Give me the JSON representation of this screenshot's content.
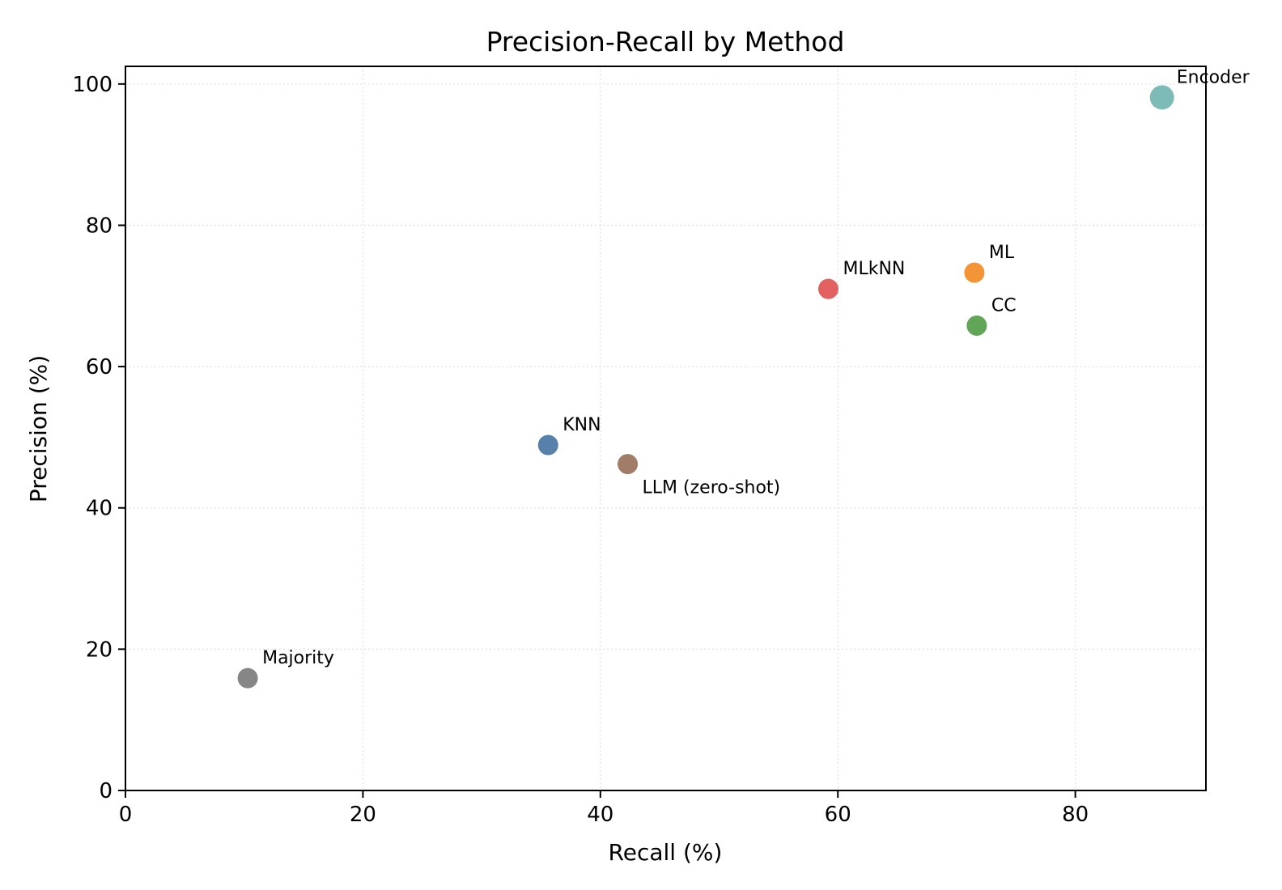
{
  "chart_data": {
    "type": "scatter",
    "title": "Precision-Recall by Method",
    "xlabel": "Recall (%)",
    "ylabel": "Precision (%)",
    "xlim": [
      0,
      91
    ],
    "ylim": [
      0,
      102.5
    ],
    "xticks": [
      "0",
      "20",
      "40",
      "60",
      "80"
    ],
    "yticks": [
      "0",
      "20",
      "40",
      "60",
      "80",
      "100"
    ],
    "grid": true,
    "points": [
      {
        "label": "Encoder",
        "x": 87.3,
        "y": 98.1,
        "color": "#76b7b2",
        "label_position": "above-right"
      },
      {
        "label": "ML",
        "x": 71.5,
        "y": 73.3,
        "color": "#f28e2b",
        "label_position": "above-right"
      },
      {
        "label": "MLkNN",
        "x": 59.2,
        "y": 71.0,
        "color": "#e15759",
        "label_position": "above-right"
      },
      {
        "label": "CC",
        "x": 71.7,
        "y": 65.8,
        "color": "#59a14f",
        "label_position": "above-right"
      },
      {
        "label": "KNN",
        "x": 35.6,
        "y": 48.9,
        "color": "#4e79a7",
        "label_position": "above-right"
      },
      {
        "label": "LLM (zero-shot)",
        "x": 42.3,
        "y": 46.2,
        "color": "#9c755f",
        "label_position": "below-right"
      },
      {
        "label": "Majority",
        "x": 10.3,
        "y": 15.9,
        "color": "#7f7f7f",
        "label_position": "above-right"
      }
    ]
  }
}
